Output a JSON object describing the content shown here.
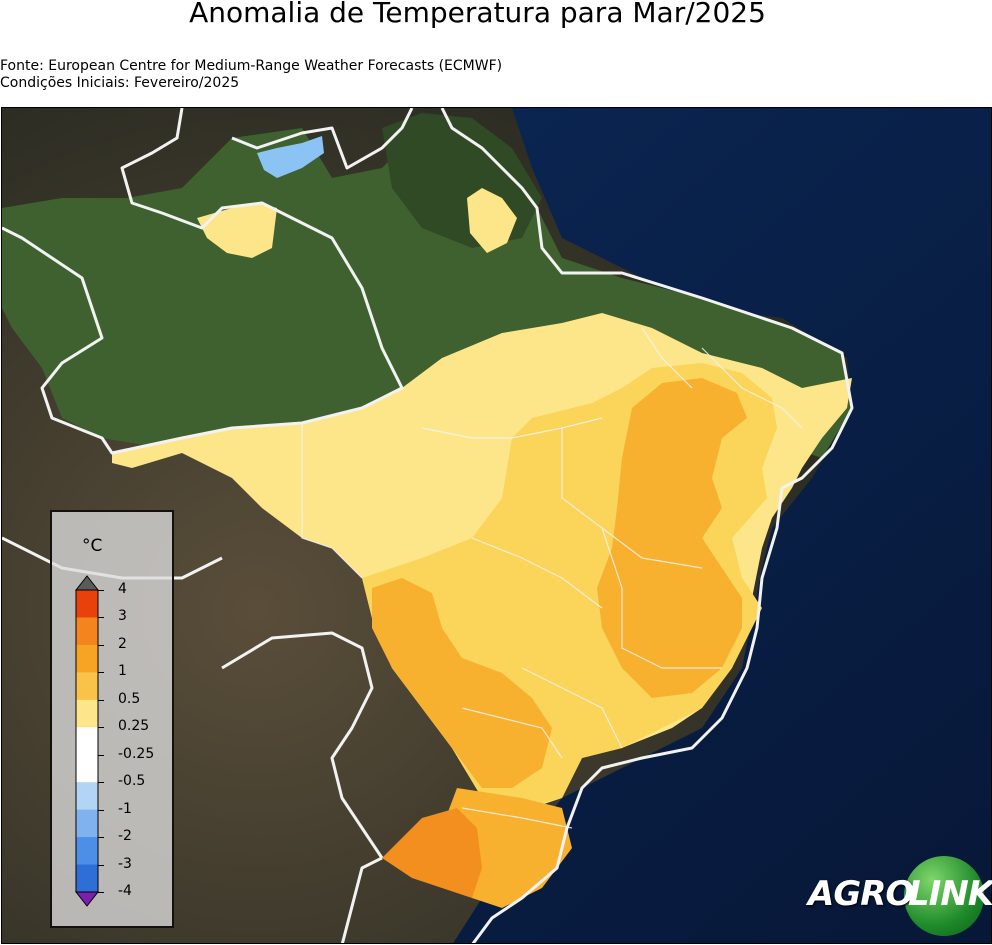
{
  "title": "Anomalia de Temperatura para Mar/2025",
  "source_line": "Fonte: European Centre for Medium-Range Weather Forecasts (ECMWF)",
  "init_line": "Condições Iniciais: Fevereiro/2025",
  "legend": {
    "unit": "°C",
    "ticks": [
      "4",
      "3",
      "2",
      "1",
      "0.5",
      "0.25",
      "-0.25",
      "-0.5",
      "-1",
      "-2",
      "-3",
      "-4"
    ],
    "colors": [
      "#e8410c",
      "#f4841e",
      "#f7a324",
      "#fbc24a",
      "#fde68a",
      "#ffffff",
      "#ffffff",
      "#b3d4f5",
      "#7fb2ee",
      "#4d8fe6",
      "#2d6fd6",
      "#1f4fc0"
    ],
    "over_color": "#5a5a5a",
    "under_color": "#7a1fb0"
  },
  "logo": {
    "left_text": "AGRO",
    "right_text": "LINK"
  },
  "colors": {
    "ocean": "#0a1f44",
    "land_green": "#3c5e2a",
    "land_dark": "#2b2a22",
    "anom_0_5": "#fde68a",
    "anom_1": "#fbd45a",
    "anom_2": "#f8b02f",
    "anom_3": "#f38f1e",
    "anom_neg": "#8cc3f5"
  }
}
